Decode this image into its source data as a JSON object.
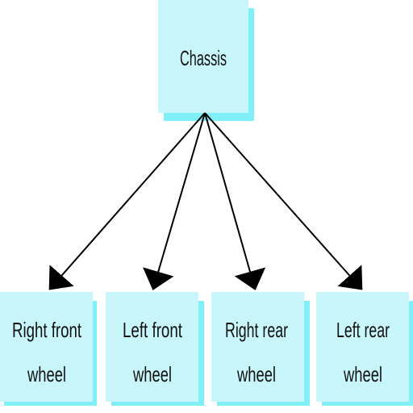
{
  "diagram": {
    "colors": {
      "box_fill": "#c8f6fb",
      "box_shadow": "#7ff0f7",
      "edge": "#000000",
      "text": "#111111"
    },
    "root": {
      "label": "Chassis"
    },
    "children": [
      {
        "line1": "Right front",
        "line2": "wheel"
      },
      {
        "line1": "Left front",
        "line2": "wheel"
      },
      {
        "line1": "Right rear",
        "line2": "wheel"
      },
      {
        "line1": "Left rear",
        "line2": "wheel"
      }
    ],
    "edges": [
      {
        "from": "Chassis",
        "to": "Right front wheel"
      },
      {
        "from": "Chassis",
        "to": "Left front wheel"
      },
      {
        "from": "Chassis",
        "to": "Right rear wheel"
      },
      {
        "from": "Chassis",
        "to": "Left rear wheel"
      }
    ]
  }
}
